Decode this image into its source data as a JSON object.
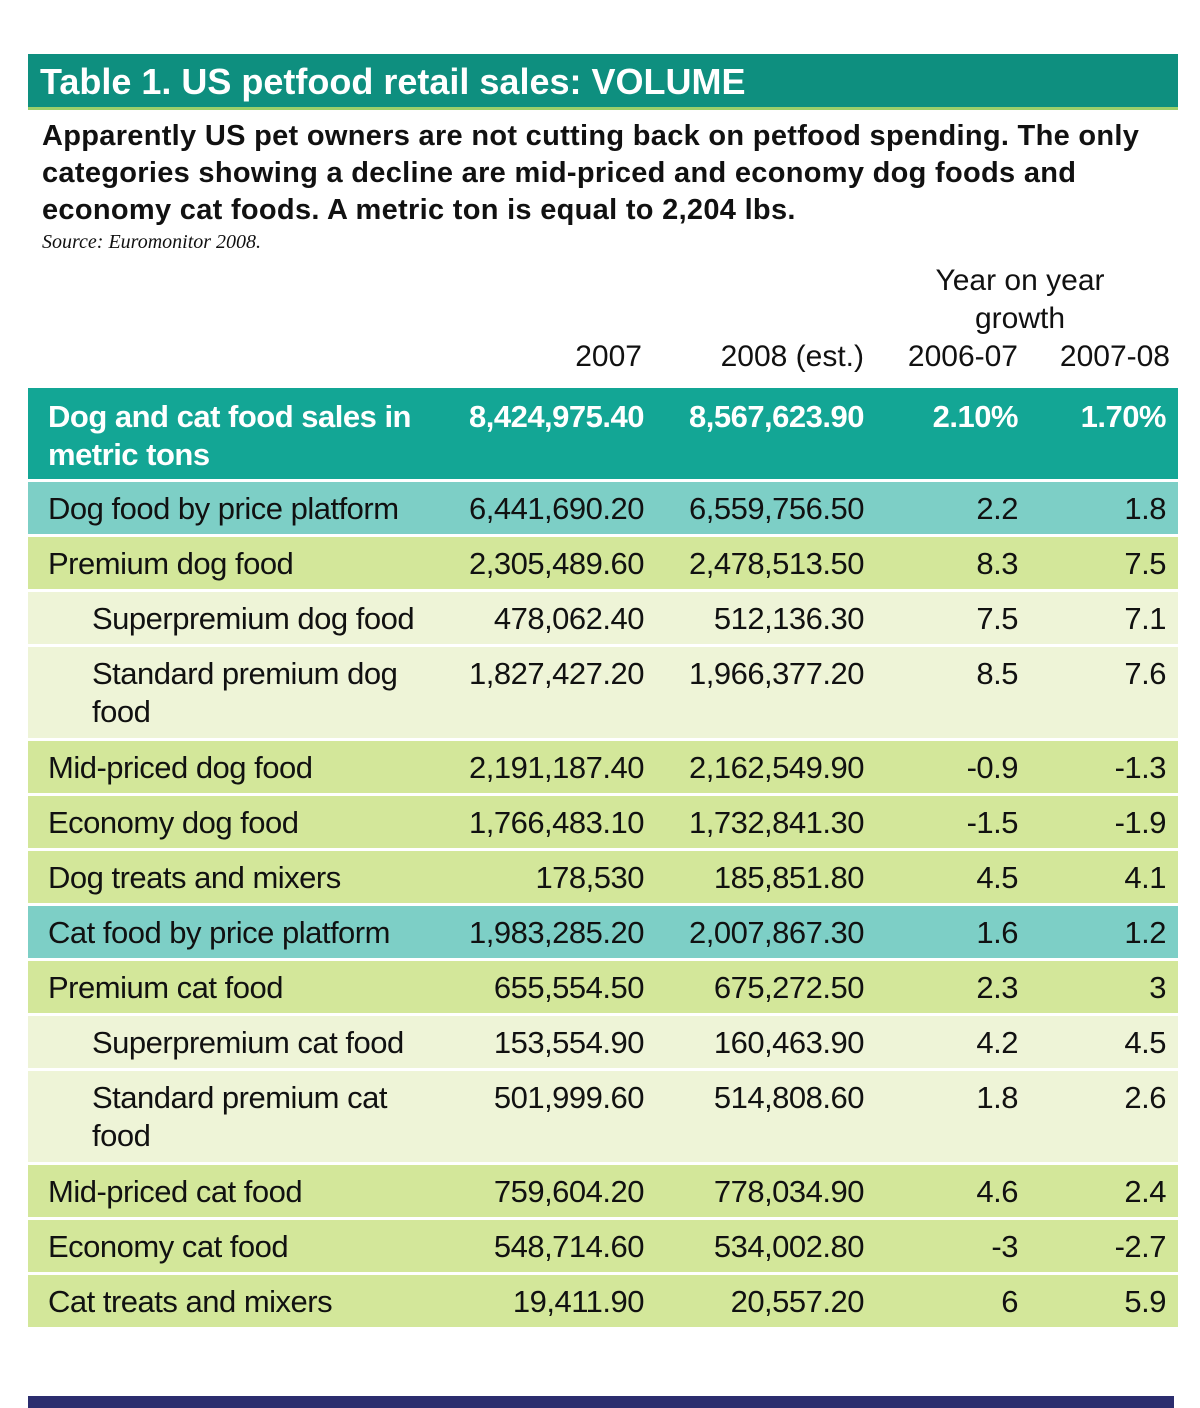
{
  "title": "Table 1. US petfood retail sales: VOLUME",
  "intro": "Apparently US pet owners are not cutting back on petfood spending. The only categories showing a decline are mid-priced and economy dog foods and economy cat foods. A metric ton is equal to 2,204 lbs.",
  "source": "Source: Euromonitor 2008.",
  "headers": {
    "group": "Year on year growth",
    "col_2007": "2007",
    "col_2008": "2008 (est.)",
    "col_0607": "2006-07",
    "col_0708": "2007-08"
  },
  "chart_data": {
    "type": "table",
    "title": "Table 1. US petfood retail sales: VOLUME",
    "columns": [
      "2007",
      "2008 (est.)",
      "2006-07",
      "2007-08"
    ],
    "rows": [
      {
        "label": "Dog and cat food sales in metric tons",
        "style": "total",
        "v2007": "8,424,975.40",
        "v2008": "8,567,623.90",
        "g0607": "2.10%",
        "g0708": "1.70%"
      },
      {
        "label": "Dog food by price platform",
        "style": "platform",
        "v2007": "6,441,690.20",
        "v2008": "6,559,756.50",
        "g0607": "2.2",
        "g0708": "1.8"
      },
      {
        "label": "Premium dog food",
        "style": "group",
        "v2007": "2,305,489.60",
        "v2008": "2,478,513.50",
        "g0607": "8.3",
        "g0708": "7.5"
      },
      {
        "label": "Superpremium dog food",
        "style": "sub",
        "v2007": "478,062.40",
        "v2008": "512,136.30",
        "g0607": "7.5",
        "g0708": "7.1"
      },
      {
        "label": "Standard premium dog food",
        "style": "sub tall",
        "v2007": "1,827,427.20",
        "v2008": "1,966,377.20",
        "g0607": "8.5",
        "g0708": "7.6"
      },
      {
        "label": "Mid-priced dog food",
        "style": "group",
        "v2007": "2,191,187.40",
        "v2008": "2,162,549.90",
        "g0607": "-0.9",
        "g0708": "-1.3"
      },
      {
        "label": "Economy dog food",
        "style": "group",
        "v2007": "1,766,483.10",
        "v2008": "1,732,841.30",
        "g0607": "-1.5",
        "g0708": "-1.9"
      },
      {
        "label": "Dog treats and mixers",
        "style": "group",
        "v2007": "178,530",
        "v2008": "185,851.80",
        "g0607": "4.5",
        "g0708": "4.1"
      },
      {
        "label": "Cat food by price platform",
        "style": "platform",
        "v2007": "1,983,285.20",
        "v2008": "2,007,867.30",
        "g0607": "1.6",
        "g0708": "1.2"
      },
      {
        "label": "Premium cat food",
        "style": "group",
        "v2007": "655,554.50",
        "v2008": "675,272.50",
        "g0607": "2.3",
        "g0708": "3"
      },
      {
        "label": "Superpremium cat food",
        "style": "sub",
        "v2007": "153,554.90",
        "v2008": "160,463.90",
        "g0607": "4.2",
        "g0708": "4.5"
      },
      {
        "label": "Standard premium cat food",
        "style": "sub tall",
        "v2007": "501,999.60",
        "v2008": "514,808.60",
        "g0607": "1.8",
        "g0708": "2.6"
      },
      {
        "label": "Mid-priced cat food",
        "style": "group",
        "v2007": "759,604.20",
        "v2008": "778,034.90",
        "g0607": "4.6",
        "g0708": "2.4"
      },
      {
        "label": "Economy cat food",
        "style": "group",
        "v2007": "548,714.60",
        "v2008": "534,002.80",
        "g0607": "-3",
        "g0708": "-2.7"
      },
      {
        "label": "Cat treats and mixers",
        "style": "group",
        "v2007": "19,411.90",
        "v2008": "20,557.20",
        "g0607": "6",
        "g0708": "5.9"
      }
    ]
  },
  "colors": {
    "title_bar": "#0e8f7f",
    "total_row": "#13a695",
    "platform_row": "#7dcfc6",
    "group_row": "#d3e79a",
    "sub_row": "#eef4d7",
    "bottom_bar": "#2b2d6e"
  }
}
